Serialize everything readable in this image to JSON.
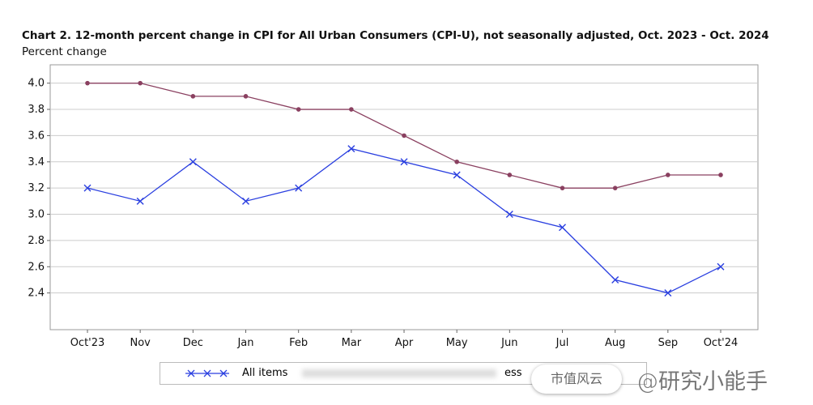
{
  "chart_data": {
    "type": "line",
    "title": "Chart 2. 12-month percent change in CPI for All Urban Consumers (CPI-U), not seasonally adjusted, Oct. 2023 - Oct. 2024",
    "ylabel": "Percent change",
    "xlabel": "",
    "categories": [
      "Oct'23",
      "Nov",
      "Dec",
      "Jan",
      "Feb",
      "Mar",
      "Apr",
      "May",
      "Jun",
      "Jul",
      "Aug",
      "Sep",
      "Oct'24"
    ],
    "yticks": [
      "4.0",
      "3.8",
      "3.6",
      "3.4",
      "3.2",
      "3.0",
      "2.8",
      "2.6",
      "2.4"
    ],
    "ylim": [
      2.12,
      4.14
    ],
    "grid": true,
    "legend_position": "bottom",
    "series": [
      {
        "name": "All items",
        "color": "#2a3fe0",
        "marker": "x",
        "values": [
          3.2,
          3.1,
          3.4,
          3.1,
          3.2,
          3.5,
          3.4,
          3.3,
          3.0,
          2.9,
          2.5,
          2.4,
          2.6
        ]
      },
      {
        "name": "ess",
        "color": "#8a4060",
        "marker": "dot",
        "values": [
          4.0,
          4.0,
          3.9,
          3.9,
          3.8,
          3.8,
          3.6,
          3.4,
          3.3,
          3.2,
          3.2,
          3.3,
          3.3
        ]
      }
    ]
  },
  "watermark": {
    "badge": "市值风云",
    "handle": "@研究小能手"
  }
}
